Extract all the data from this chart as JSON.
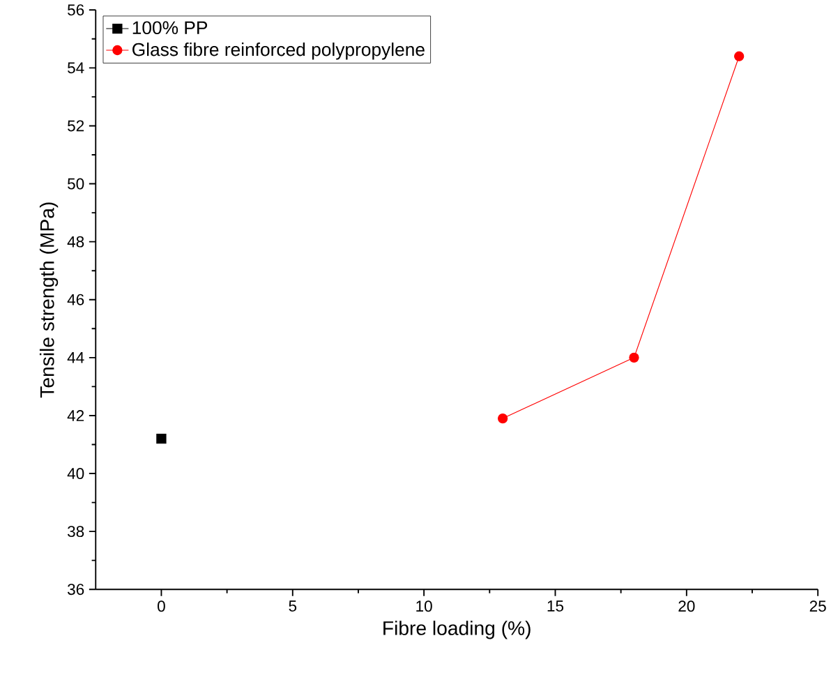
{
  "chart_data": {
    "type": "line",
    "xlabel": "Fibre loading (%)",
    "ylabel": "Tensile strength (MPa)",
    "xlim": [
      -2.5,
      25
    ],
    "ylim": [
      36,
      56
    ],
    "xticks": [
      0,
      5,
      10,
      15,
      20,
      25
    ],
    "yticks": [
      36,
      38,
      40,
      42,
      44,
      46,
      48,
      50,
      52,
      54,
      56
    ],
    "series": [
      {
        "name": "100% PP",
        "type": "scatter",
        "marker": "square",
        "color": "#000000",
        "x": [
          0
        ],
        "values": [
          41.2
        ]
      },
      {
        "name": "Glass fibre reinforced polypropylene",
        "marker": "circle",
        "color": "#ff0000",
        "x": [
          13,
          18,
          22
        ],
        "values": [
          41.9,
          44.0,
          54.4
        ]
      }
    ],
    "legend": "top left",
    "grid": false
  }
}
